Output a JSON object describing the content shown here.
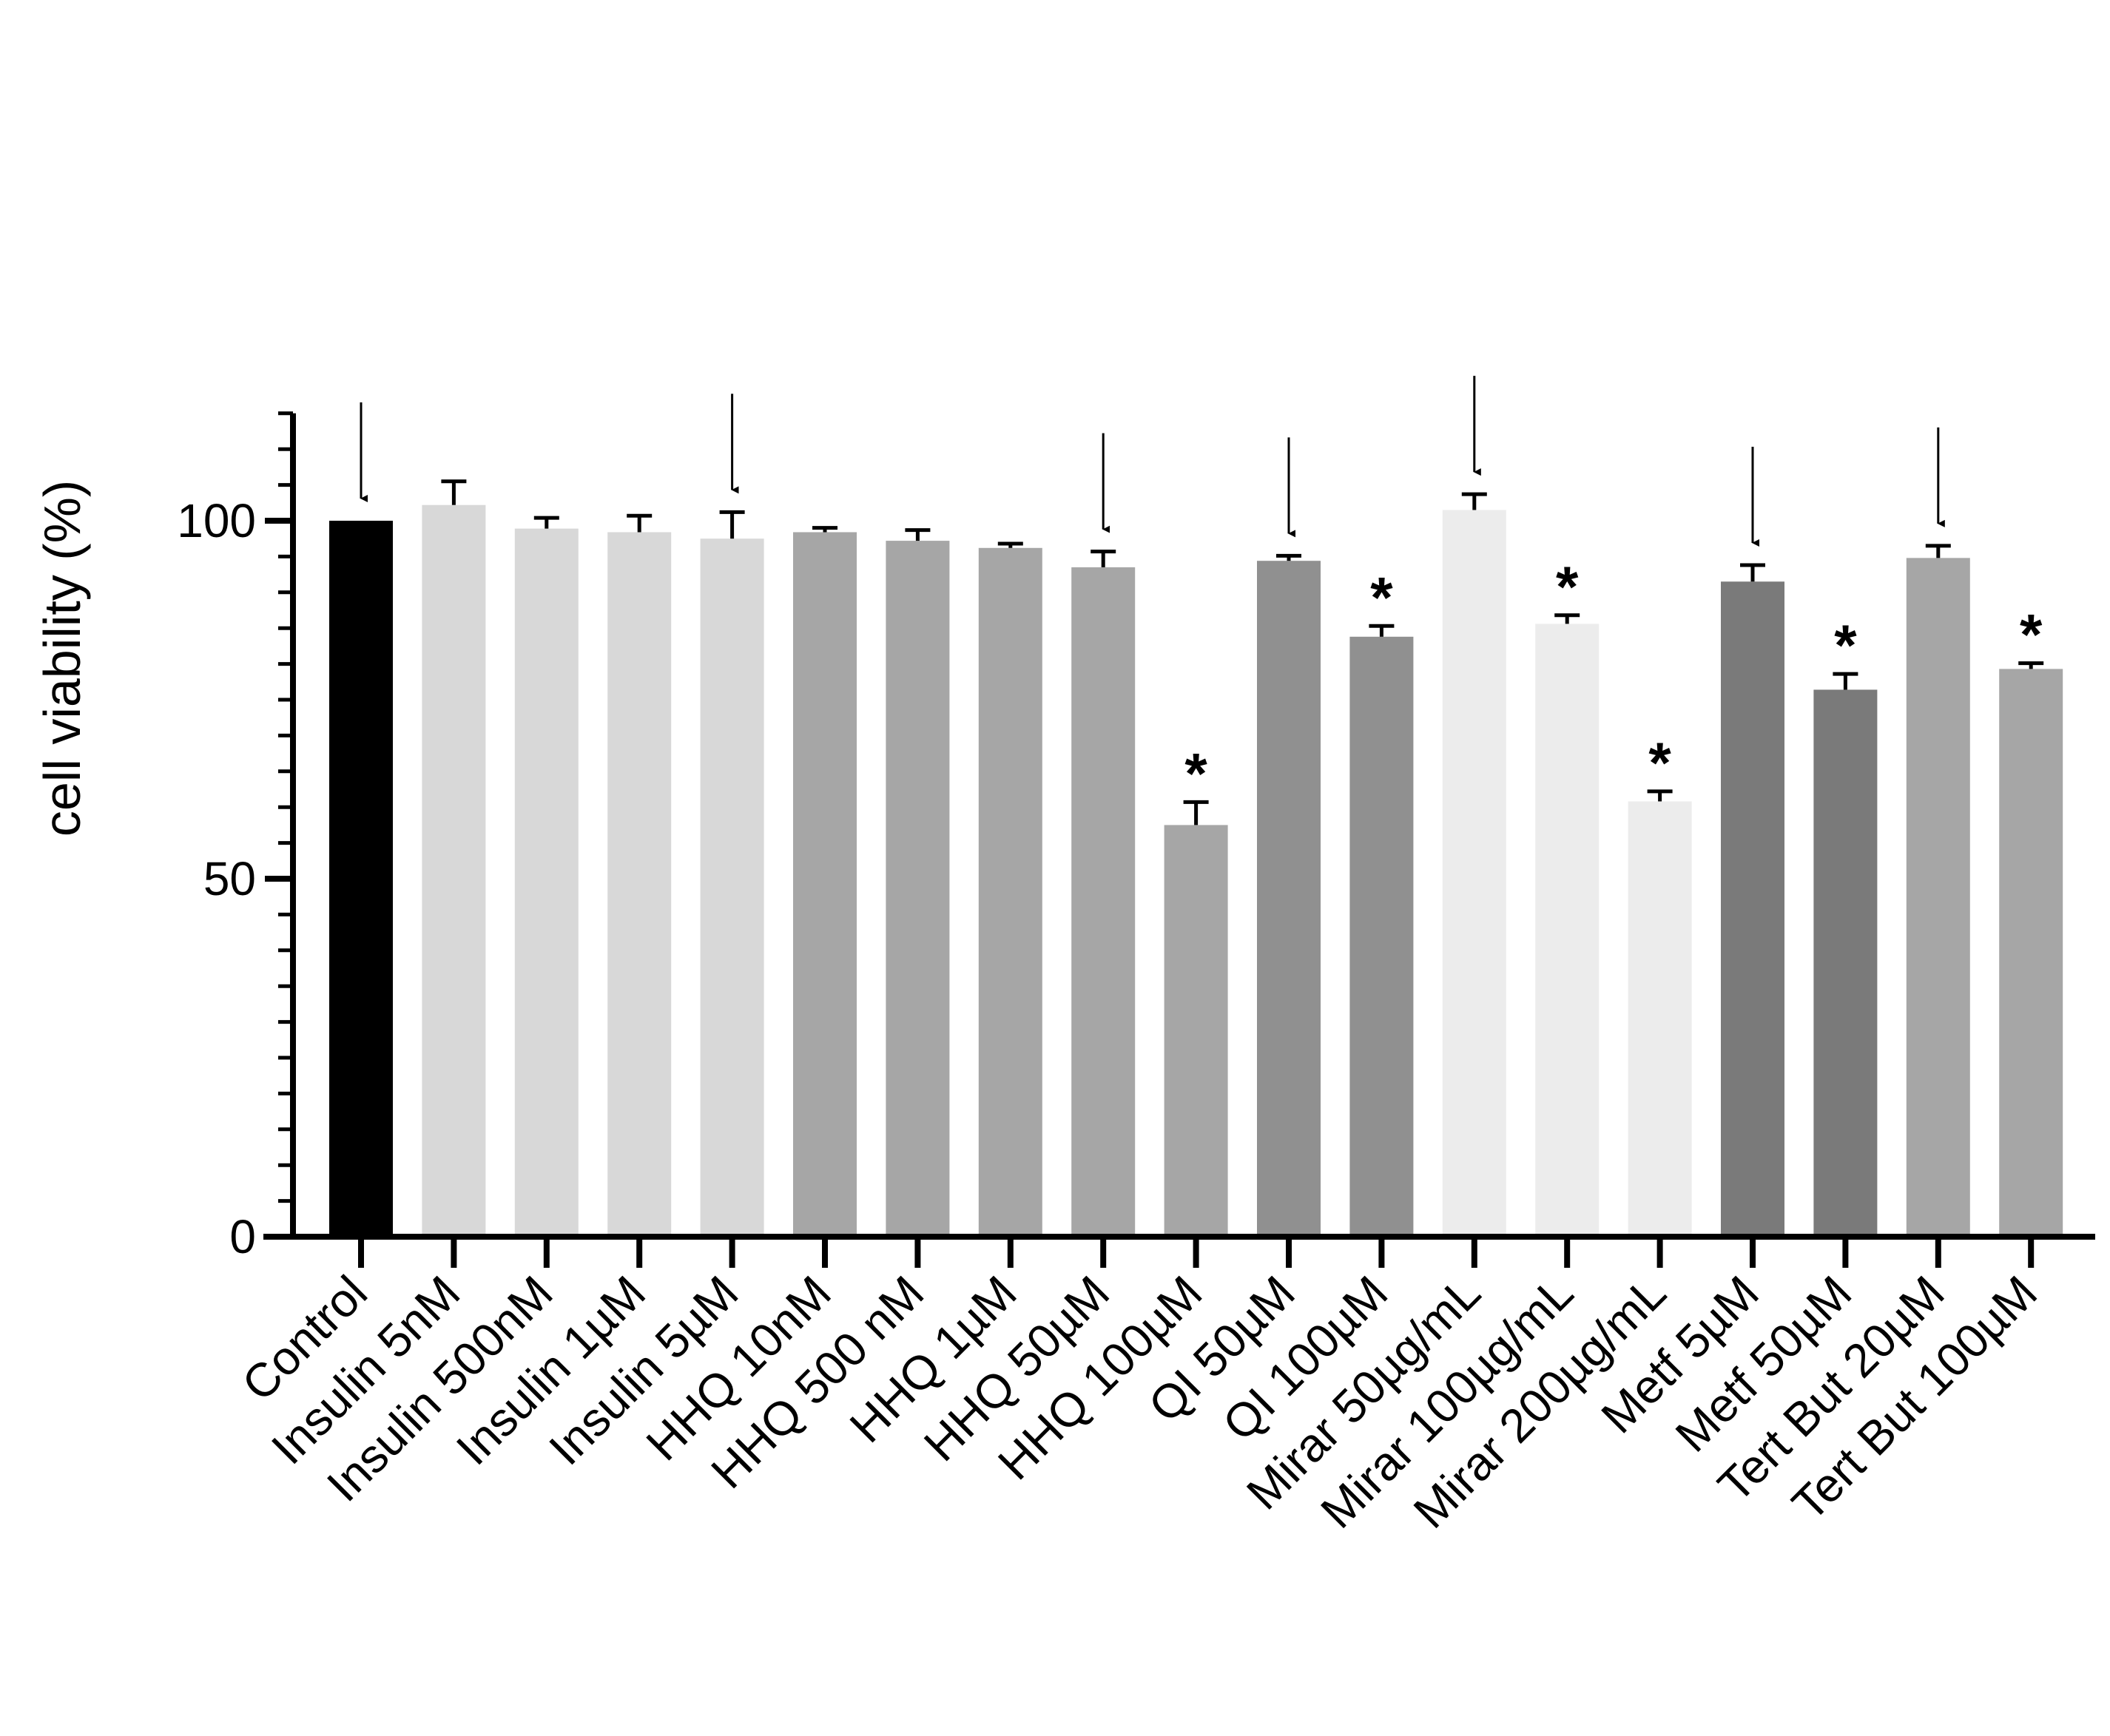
{
  "chart_data": {
    "type": "bar",
    "title": "",
    "xlabel": "",
    "ylabel": "cell viability (%)",
    "ylim": [
      0,
      115
    ],
    "yticks": [
      0,
      50,
      100
    ],
    "yticklabels": [
      "0",
      "50",
      "100"
    ],
    "minor_tick_step": 5,
    "categories": [
      "Control",
      "Insulin 5nM",
      "Insulin 500nM",
      "Insulin 1µM",
      "Insulin 5µM",
      "HHQ 10nM",
      "HHQ 500 nM",
      "HHQ 1µM",
      "HHQ 50µM",
      "HHQ 100µM",
      "QI 50µM",
      "QI 100µM",
      "Mirar 50µg/mL",
      "Mirar 100µg/mL",
      "Mirar 200µg/mL",
      "Metf 5µM",
      "Metf 50µM",
      "Tert But 20µM",
      "Tert But 100µM"
    ],
    "values": [
      100,
      102.2,
      98.9,
      98.4,
      97.5,
      98.4,
      97.2,
      96.2,
      93.5,
      57.5,
      94.4,
      83.8,
      101.5,
      85.6,
      60.8,
      91.5,
      76.4,
      94.8,
      79.3
    ],
    "errors": [
      0,
      3.3,
      1.5,
      2.3,
      3.7,
      0.6,
      1.5,
      0.6,
      2.2,
      3.2,
      0.7,
      1.5,
      2.2,
      1.2,
      1.4,
      2.3,
      2.2,
      1.7,
      0.8
    ],
    "colors": [
      "#000000",
      "#d8d8d8",
      "#d8d8d8",
      "#d8d8d8",
      "#d8d8d8",
      "#a6a6a6",
      "#a6a6a6",
      "#a6a6a6",
      "#a6a6a6",
      "#a6a6a6",
      "#909090",
      "#909090",
      "#ececec",
      "#ececec",
      "#ececec",
      "#7a7a7a",
      "#7a7a7a",
      "#a6a6a6",
      "#a6a6a6"
    ],
    "significance_marker": "*",
    "significant": [
      false,
      false,
      false,
      false,
      false,
      false,
      false,
      false,
      false,
      true,
      false,
      true,
      false,
      true,
      true,
      false,
      true,
      false,
      true
    ],
    "arrow_markers": [
      true,
      false,
      false,
      false,
      true,
      false,
      false,
      false,
      true,
      false,
      true,
      false,
      true,
      false,
      false,
      true,
      false,
      true,
      false
    ]
  }
}
